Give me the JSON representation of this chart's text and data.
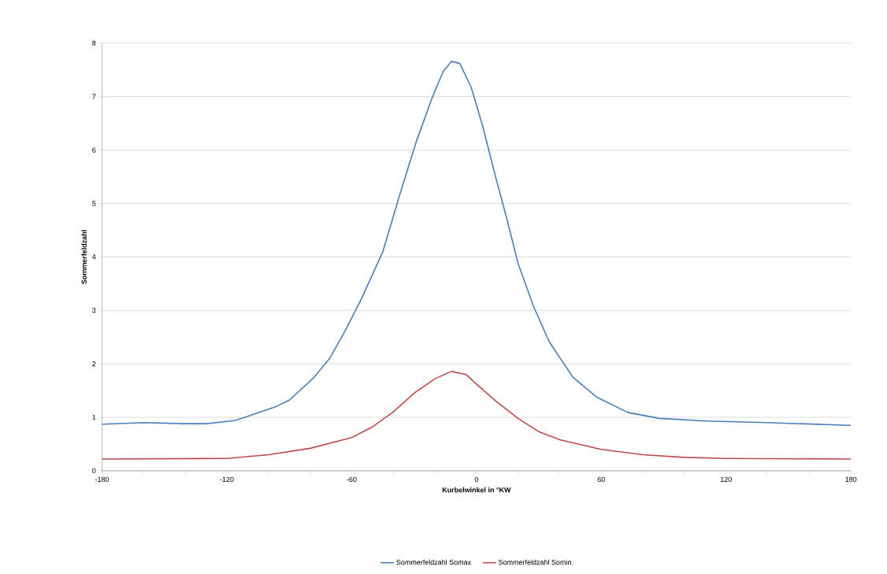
{
  "chart_data": {
    "type": "line",
    "xlabel": "Kurbelwinkel in °KW",
    "ylabel": "Sommerfeldzahl",
    "xlim": [
      -180,
      180
    ],
    "ylim": [
      0,
      8
    ],
    "xticks": [
      -180,
      {
        "value": -160,
        "label": null
      },
      {
        "value": -140,
        "label": null
      },
      -120,
      {
        "value": -100,
        "label": null
      },
      {
        "value": -80,
        "label": null
      },
      -60,
      {
        "value": -40,
        "label": null
      },
      {
        "value": -20,
        "label": null
      },
      0,
      {
        "value": 20,
        "label": null
      },
      {
        "value": 40,
        "label": null
      },
      60,
      {
        "value": 80,
        "label": null
      },
      {
        "value": 100,
        "label": null
      },
      120,
      {
        "value": 140,
        "label": null
      },
      {
        "value": 160,
        "label": null
      },
      180
    ],
    "yticks": [
      0,
      1,
      2,
      3,
      4,
      5,
      6,
      7,
      8
    ],
    "grid": "y",
    "legend": "bottom",
    "marker": "none",
    "line_style": "solid",
    "series": [
      {
        "name": "Sommerfeldzahl Somax",
        "color": "#4a7ebb",
        "x": [
          -180,
          -160,
          -140,
          -130,
          -116,
          -110,
          -97,
          -90,
          -78,
          -70.6,
          -63,
          -55.5,
          -45,
          -36.6,
          -29,
          -21.5,
          -16,
          -12,
          -8,
          -2.6,
          3,
          8.7,
          14.3,
          20,
          27.5,
          35,
          46.4,
          57.7,
          72.8,
          88,
          110.6,
          140,
          180
        ],
        "values": [
          0.87,
          0.9,
          0.88,
          0.88,
          0.94,
          1.02,
          1.19,
          1.32,
          1.75,
          2.1,
          2.63,
          3.2,
          4.1,
          5.2,
          6.15,
          6.96,
          7.47,
          7.66,
          7.62,
          7.18,
          6.45,
          5.57,
          4.76,
          3.88,
          3.07,
          2.41,
          1.75,
          1.38,
          1.09,
          0.98,
          0.93,
          0.9,
          0.85
        ]
      },
      {
        "name": "Sommerfeldzahl Somin",
        "color": "#be4b48",
        "x": [
          -180,
          -120,
          -100,
          -80,
          -60,
          -50,
          -40,
          -30,
          -20,
          -12,
          -5,
          0,
          10,
          20,
          30,
          40,
          60,
          80,
          100,
          120,
          180
        ],
        "values": [
          0.22,
          0.23,
          0.3,
          0.42,
          0.62,
          0.82,
          1.1,
          1.45,
          1.72,
          1.86,
          1.8,
          1.62,
          1.28,
          0.98,
          0.73,
          0.58,
          0.4,
          0.3,
          0.25,
          0.23,
          0.22
        ]
      }
    ]
  }
}
